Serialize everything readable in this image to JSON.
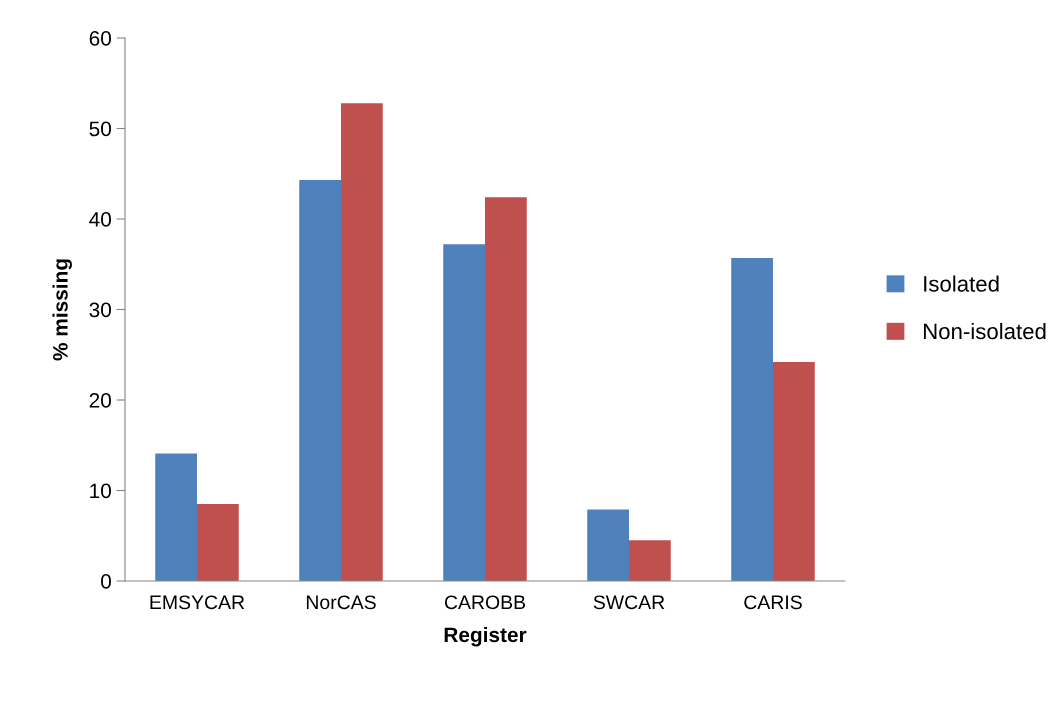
{
  "chart_data": {
    "type": "bar",
    "xlabel": "Register",
    "ylabel": "% missing",
    "categories": [
      "EMSYCAR",
      "NorCAS",
      "CAROBB",
      "SWCAR",
      "CARIS"
    ],
    "series": [
      {
        "name": "Isolated",
        "color": "#4f81bd",
        "values": [
          14.1,
          44.3,
          37.2,
          7.9,
          35.7
        ]
      },
      {
        "name": "Non-isolated",
        "color": "#c0504d",
        "values": [
          8.5,
          52.8,
          42.4,
          4.5,
          24.2
        ]
      }
    ],
    "ylim": [
      0,
      60
    ],
    "yticks": [
      0,
      10,
      20,
      30,
      40,
      50,
      60
    ],
    "grid": false,
    "legend": "right"
  }
}
